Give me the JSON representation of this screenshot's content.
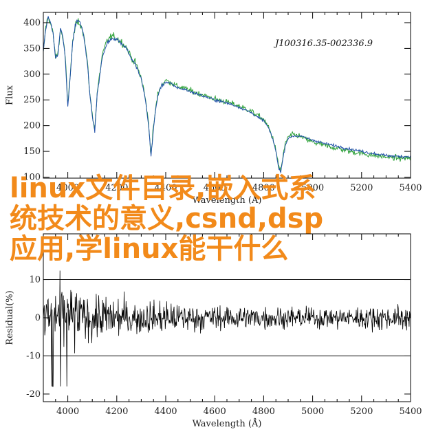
{
  "overlay_caption": "linux文件目录,嵌入式系统技术的意义,csnd,dsp应用,学linux能干什么",
  "colors": {
    "series_blue": "#1f4fa8",
    "series_green": "#2fa23a",
    "residual": "#000000",
    "caption": "#f28a1a"
  },
  "chart_data": [
    {
      "type": "line",
      "annotation": "J100316.35-002336.9",
      "xlabel": "Wavelength (Å)",
      "ylabel": "Flux",
      "xlim": [
        3900,
        5400
      ],
      "ylim": [
        98,
        420
      ],
      "x_ticks": [
        4000,
        4200,
        4400,
        4600,
        4800,
        5000,
        5200,
        5400
      ],
      "y_ticks": [
        100,
        150,
        200,
        250,
        300,
        350,
        400
      ],
      "grid": false,
      "legend": "none",
      "series": [
        {
          "color": "blue",
          "x": [
            3900,
            3910,
            3920,
            3930,
            3940,
            3950,
            3960,
            3970,
            3980,
            3990,
            4000,
            4010,
            4020,
            4030,
            4040,
            4050,
            4060,
            4070,
            4080,
            4090,
            4100,
            4110,
            4120,
            4140,
            4160,
            4180,
            4200,
            4220,
            4240,
            4260,
            4280,
            4300,
            4310,
            4320,
            4330,
            4340,
            4350,
            4360,
            4370,
            4380,
            4400,
            4420,
            4440,
            4460,
            4480,
            4500,
            4550,
            4600,
            4650,
            4700,
            4750,
            4780,
            4800,
            4820,
            4840,
            4850,
            4860,
            4870,
            4880,
            4890,
            4900,
            4920,
            4940,
            4960,
            4980,
            5000,
            5050,
            5100,
            5150,
            5200,
            5250,
            5300,
            5350,
            5400
          ],
          "y": [
            345,
            388,
            410,
            400,
            380,
            330,
            340,
            390,
            372,
            330,
            235,
            300,
            360,
            395,
            405,
            400,
            385,
            360,
            320,
            260,
            220,
            190,
            260,
            330,
            360,
            370,
            368,
            360,
            350,
            330,
            315,
            290,
            268,
            240,
            200,
            140,
            195,
            235,
            262,
            275,
            285,
            282,
            275,
            272,
            270,
            266,
            258,
            250,
            244,
            236,
            225,
            215,
            210,
            195,
            170,
            150,
            120,
            110,
            140,
            165,
            175,
            180,
            180,
            178,
            175,
            172,
            165,
            160,
            155,
            150,
            146,
            142,
            140,
            140
          ]
        },
        {
          "color": "green",
          "x": [
            3900,
            3910,
            3920,
            3930,
            3940,
            3950,
            3960,
            3970,
            3980,
            3990,
            4000,
            4010,
            4020,
            4030,
            4040,
            4050,
            4060,
            4070,
            4080,
            4090,
            4100,
            4110,
            4120,
            4140,
            4160,
            4180,
            4200,
            4220,
            4240,
            4260,
            4280,
            4300,
            4310,
            4320,
            4330,
            4340,
            4350,
            4360,
            4370,
            4380,
            4400,
            4420,
            4440,
            4460,
            4480,
            4500,
            4550,
            4600,
            4650,
            4700,
            4750,
            4780,
            4800,
            4820,
            4840,
            4850,
            4860,
            4870,
            4880,
            4890,
            4900,
            4920,
            4940,
            4960,
            4980,
            5000,
            5050,
            5100,
            5150,
            5200,
            5250,
            5300,
            5350,
            5400
          ],
          "y": [
            340,
            392,
            412,
            398,
            378,
            332,
            342,
            388,
            370,
            332,
            238,
            302,
            362,
            392,
            402,
            398,
            388,
            362,
            322,
            262,
            222,
            192,
            262,
            335,
            365,
            374,
            370,
            362,
            352,
            332,
            318,
            292,
            270,
            242,
            203,
            143,
            198,
            238,
            265,
            278,
            288,
            284,
            278,
            275,
            272,
            268,
            260,
            252,
            246,
            238,
            228,
            218,
            212,
            197,
            172,
            152,
            123,
            113,
            143,
            168,
            178,
            182,
            181,
            176,
            172,
            168,
            161,
            156,
            150,
            146,
            142,
            139,
            137,
            137
          ]
        }
      ]
    },
    {
      "type": "line",
      "xlabel": "Wavelength (Å)",
      "ylabel": "Residual(%)",
      "xlim": [
        3900,
        5400
      ],
      "ylim": [
        -22,
        22
      ],
      "x_ticks": [
        4000,
        4200,
        4400,
        4600,
        4800,
        5000,
        5200,
        5400
      ],
      "y_ticks": [
        -20,
        -10,
        0,
        10
      ],
      "reference_lines": [
        10,
        -10
      ],
      "grid": false,
      "legend": "none",
      "noise_amplitude": {
        "x": [
          3900,
          4000,
          4100,
          4200,
          4300,
          4400,
          4600,
          4800,
          5000,
          5200,
          5400
        ],
        "amplitude": [
          14,
          13,
          9,
          8,
          7,
          6,
          5,
          4.5,
          4,
          4.5,
          5
        ]
      }
    }
  ]
}
